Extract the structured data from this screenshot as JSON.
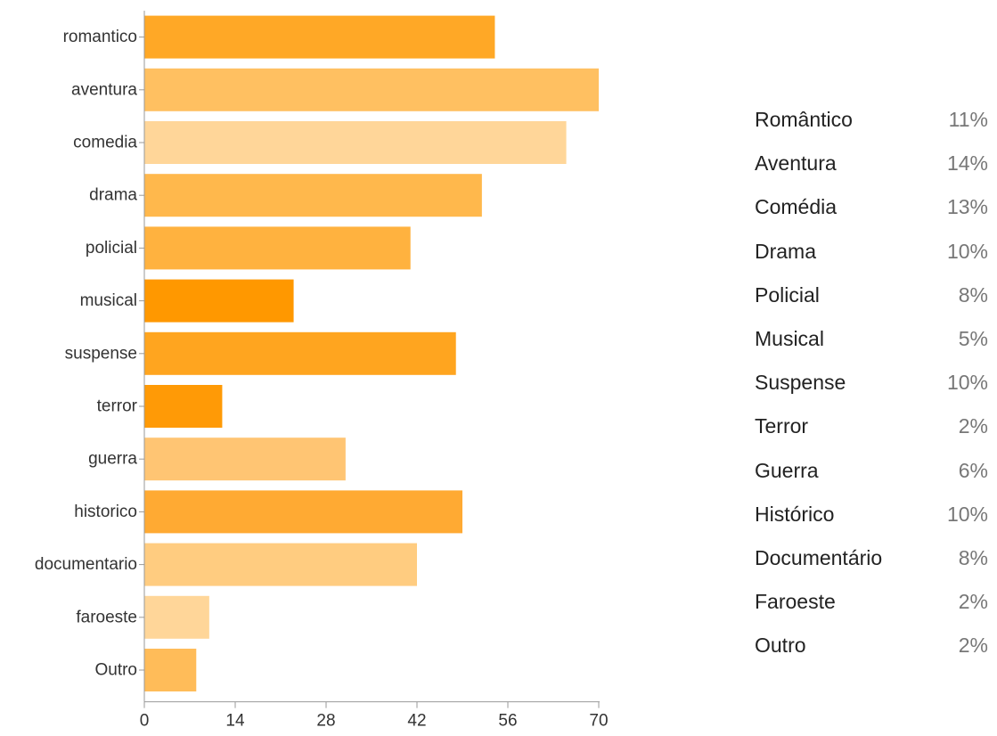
{
  "chart_data": {
    "type": "bar",
    "orientation": "horizontal",
    "categories": [
      "romantico",
      "aventura",
      "comedia",
      "drama",
      "policial",
      "musical",
      "suspense",
      "terror",
      "guerra",
      "historico",
      "documentario",
      "faroeste",
      "Outro"
    ],
    "values": [
      54,
      70,
      65,
      52,
      41,
      23,
      48,
      12,
      31,
      49,
      42,
      10,
      8
    ],
    "bar_colors": [
      "#ffa826",
      "#ffc061",
      "#ffd699",
      "#ffb84c",
      "#ffb23f",
      "#ff9800",
      "#ffa51f",
      "#ff9a06",
      "#ffc573",
      "#ffaa33",
      "#ffcc80",
      "#ffd699",
      "#ffbc59"
    ],
    "x_ticks": [
      "0",
      "14",
      "28",
      "42",
      "56",
      "70"
    ],
    "xlim": [
      0,
      70
    ],
    "title": "",
    "xlabel": "",
    "ylabel": ""
  },
  "summary": [
    {
      "label": "Romântico",
      "pct": "11%"
    },
    {
      "label": "Aventura",
      "pct": "14%"
    },
    {
      "label": "Comédia",
      "pct": "13%"
    },
    {
      "label": "Drama",
      "pct": "10%"
    },
    {
      "label": "Policial",
      "pct": "8%"
    },
    {
      "label": "Musical",
      "pct": "5%"
    },
    {
      "label": "Suspense",
      "pct": "10%"
    },
    {
      "label": "Terror",
      "pct": "2%"
    },
    {
      "label": "Guerra",
      "pct": "6%"
    },
    {
      "label": "Histórico",
      "pct": "10%"
    },
    {
      "label": "Documentário",
      "pct": "8%"
    },
    {
      "label": "Faroeste",
      "pct": "2%"
    },
    {
      "label": "Outro",
      "pct": "2%"
    }
  ],
  "colors": {
    "axis": "#999999",
    "text": "#333333",
    "pct_text": "#777777"
  }
}
